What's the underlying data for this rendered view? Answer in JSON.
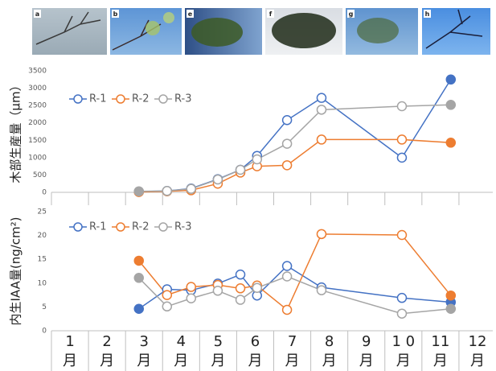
{
  "photo_labels": [
    "a",
    "b",
    "e",
    "f",
    "g",
    "h"
  ],
  "chart_data": [
    {
      "type": "line",
      "ylabel": "木部生産量（μm）",
      "x": [
        2.86,
        3.62,
        4.27,
        4.99,
        5.6,
        6.05,
        6.86,
        7.79,
        9.96,
        11.28
      ],
      "xlim": [
        0.5,
        12.5
      ],
      "ylim": [
        0,
        3500
      ],
      "yticks": [
        0,
        500,
        1000,
        1500,
        2000,
        2500,
        3000,
        3500
      ],
      "grid": false,
      "legend": "top-left",
      "filled_endpoints": true,
      "series": [
        {
          "name": "R-1",
          "color": "#4472c4",
          "values": [
            20,
            40,
            110,
            380,
            650,
            1050,
            2080,
            2720,
            1000,
            3250
          ]
        },
        {
          "name": "R-2",
          "color": "#ed7d31",
          "values": [
            10,
            30,
            60,
            250,
            570,
            750,
            780,
            1520,
            1520,
            1430
          ]
        },
        {
          "name": "R-3",
          "color": "#a5a5a5",
          "values": [
            30,
            40,
            100,
            370,
            650,
            950,
            1400,
            2380,
            2480,
            2520
          ]
        }
      ]
    },
    {
      "type": "line",
      "ylabel": "内生IAA量(ng/cm²)",
      "x": [
        2.86,
        3.62,
        4.27,
        4.99,
        5.6,
        6.05,
        6.86,
        7.79,
        9.96,
        11.28
      ],
      "xlim": [
        0.5,
        12.5
      ],
      "xticks": [
        {
          "value": 1,
          "label": "1月"
        },
        {
          "value": 2,
          "label": "2月"
        },
        {
          "value": 3,
          "label": "3月"
        },
        {
          "value": 4,
          "label": "4月"
        },
        {
          "value": 5,
          "label": "5月"
        },
        {
          "value": 6,
          "label": "6月"
        },
        {
          "value": 7,
          "label": "7月"
        },
        {
          "value": 8,
          "label": "8月"
        },
        {
          "value": 9,
          "label": "9月"
        },
        {
          "value": 10,
          "label": "1 0月"
        },
        {
          "value": 11,
          "label": "11月"
        },
        {
          "value": 12,
          "label": "12月"
        }
      ],
      "ylim": [
        0,
        25
      ],
      "yticks": [
        0,
        5,
        10,
        15,
        20,
        25
      ],
      "grid": false,
      "legend": "top-left",
      "filled_endpoints": true,
      "series": [
        {
          "name": "R-1",
          "color": "#4472c4",
          "values": [
            4.6,
            8.7,
            8.5,
            9.9,
            11.8,
            7.4,
            13.6,
            9.1,
            6.9,
            6.0
          ]
        },
        {
          "name": "R-2",
          "color": "#ed7d31",
          "values": [
            14.7,
            7.5,
            9.2,
            9.6,
            8.9,
            9.5,
            4.4,
            20.3,
            20.1,
            7.4
          ]
        },
        {
          "name": "R-3",
          "color": "#a5a5a5",
          "values": [
            11.1,
            5.1,
            6.8,
            8.4,
            6.5,
            9.0,
            11.4,
            8.5,
            3.6,
            4.6
          ]
        }
      ]
    }
  ]
}
